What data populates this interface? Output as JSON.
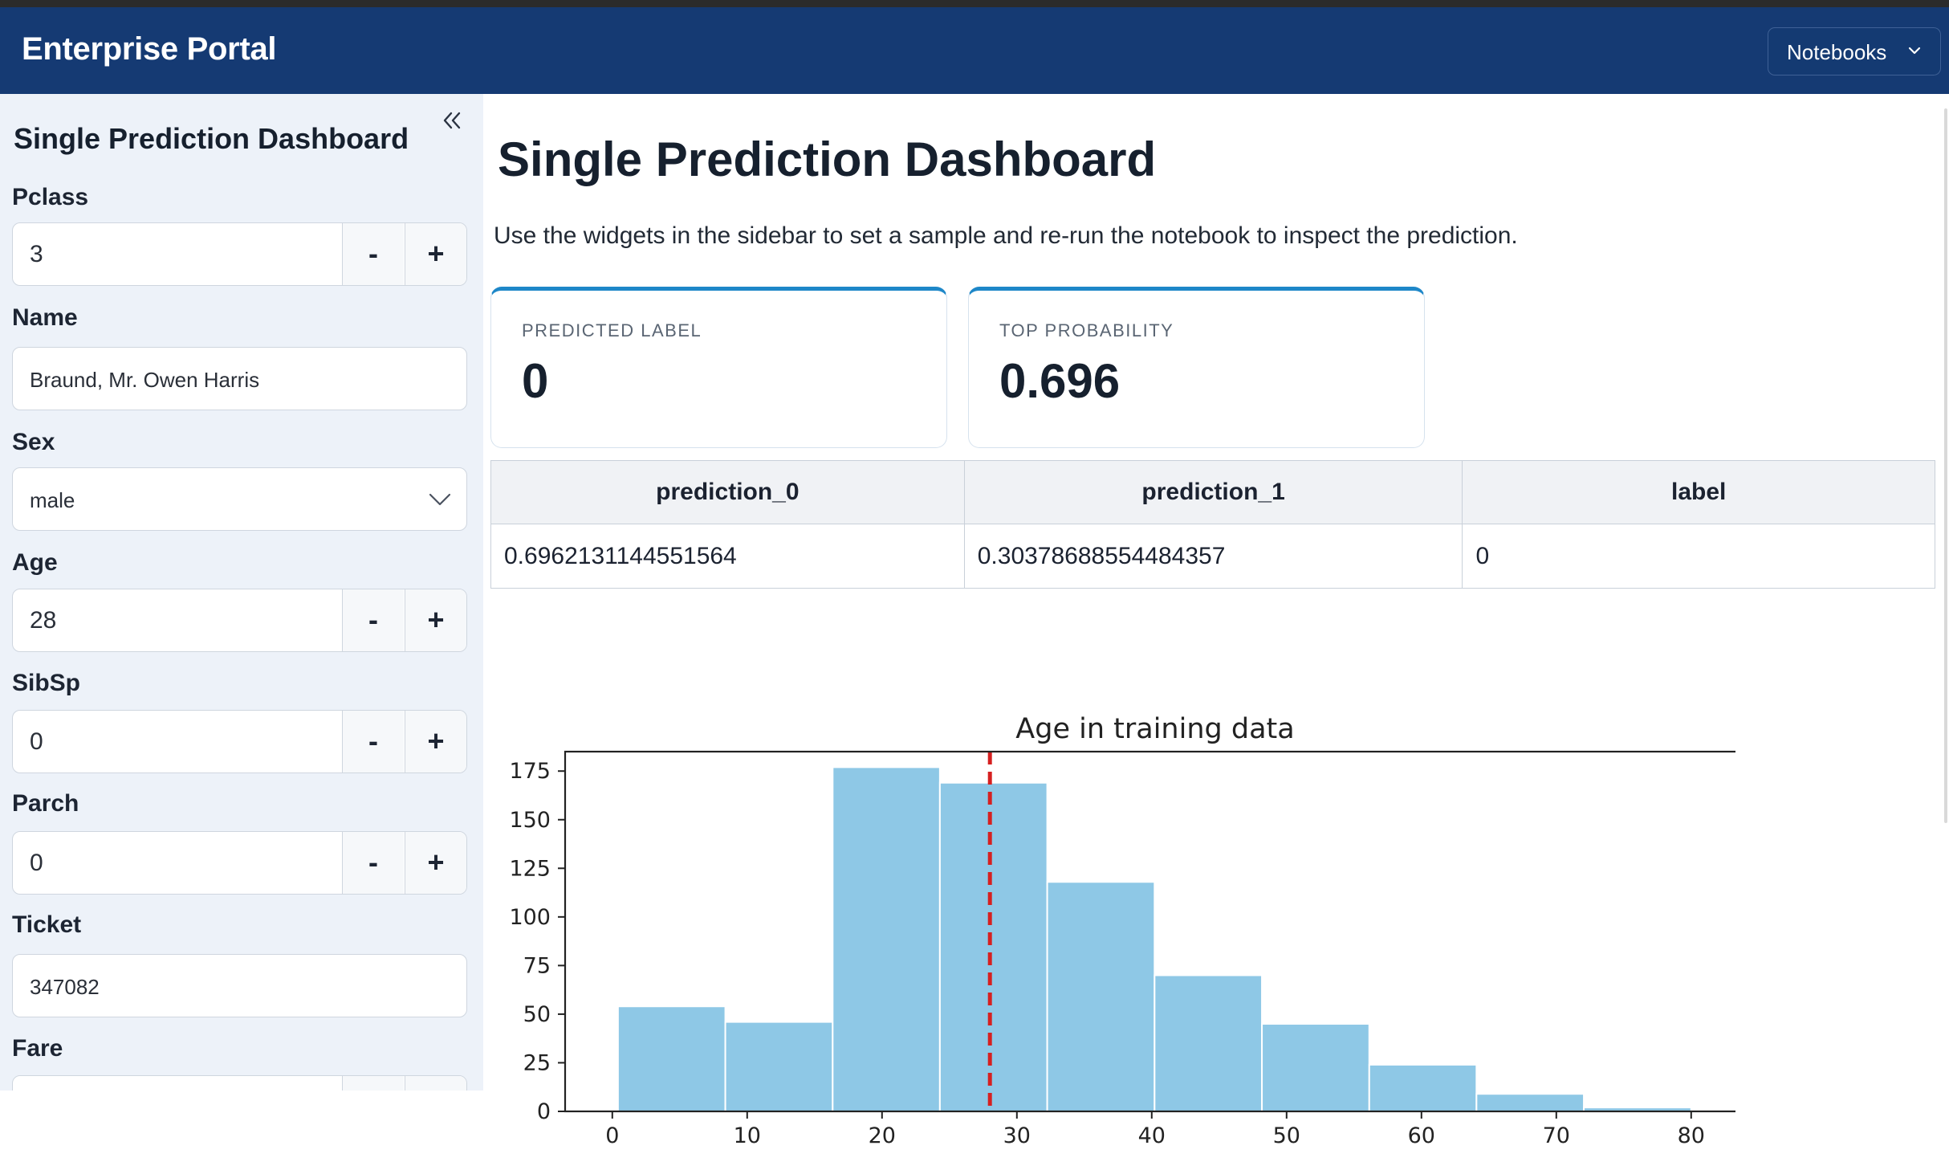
{
  "app": {
    "title": "Enterprise Portal",
    "notebook_selector": "Notebooks"
  },
  "sidebar": {
    "title": "Single Prediction Dashboard",
    "fields": {
      "pclass": {
        "label": "Pclass",
        "value": "3"
      },
      "name": {
        "label": "Name",
        "value": "Braund, Mr. Owen Harris"
      },
      "sex": {
        "label": "Sex",
        "value": "male"
      },
      "age": {
        "label": "Age",
        "value": "28"
      },
      "sibsp": {
        "label": "SibSp",
        "value": "0"
      },
      "parch": {
        "label": "Parch",
        "value": "0"
      },
      "ticket": {
        "label": "Ticket",
        "value": "347082"
      },
      "fare": {
        "label": "Fare",
        "value": ""
      }
    },
    "stepper": {
      "minus": "-",
      "plus": "+"
    }
  },
  "main": {
    "title": "Single Prediction Dashboard",
    "intro": "Use the widgets in the sidebar to set a sample and re-run the notebook to inspect the prediction.",
    "cards": [
      {
        "label": "PREDICTED LABEL",
        "value": "0"
      },
      {
        "label": "TOP PROBABILITY",
        "value": "0.696"
      }
    ],
    "table": {
      "headers": [
        "prediction_0",
        "prediction_1",
        "label"
      ],
      "rows": [
        [
          "0.6962131144551564",
          "0.30378688554484357",
          "0"
        ]
      ]
    }
  },
  "colors": {
    "header": "#153a73",
    "accent": "#1e87c8",
    "bar": "#8ec8e6",
    "marker": "#d62020"
  },
  "chart_data": {
    "type": "bar",
    "title": "Age in training data",
    "xlabel": "",
    "ylabel": "",
    "bins": [
      [
        0.42,
        8.38
      ],
      [
        8.38,
        16.34
      ],
      [
        16.34,
        24.29
      ],
      [
        24.29,
        32.25
      ],
      [
        32.25,
        40.21
      ],
      [
        40.21,
        48.17
      ],
      [
        48.17,
        56.13
      ],
      [
        56.13,
        64.08
      ],
      [
        64.08,
        72.04
      ],
      [
        72.04,
        80.0
      ]
    ],
    "values": [
      54,
      46,
      177,
      169,
      118,
      70,
      45,
      24,
      9,
      2
    ],
    "xlim": [
      -3.5,
      84
    ],
    "ylim": [
      0,
      185
    ],
    "xticks": [
      0,
      10,
      20,
      30,
      40,
      50,
      60,
      70,
      80
    ],
    "yticks": [
      0,
      25,
      50,
      75,
      100,
      125,
      150,
      175
    ],
    "marker_line": {
      "x": 28,
      "style": "dashed"
    },
    "grid": false
  }
}
